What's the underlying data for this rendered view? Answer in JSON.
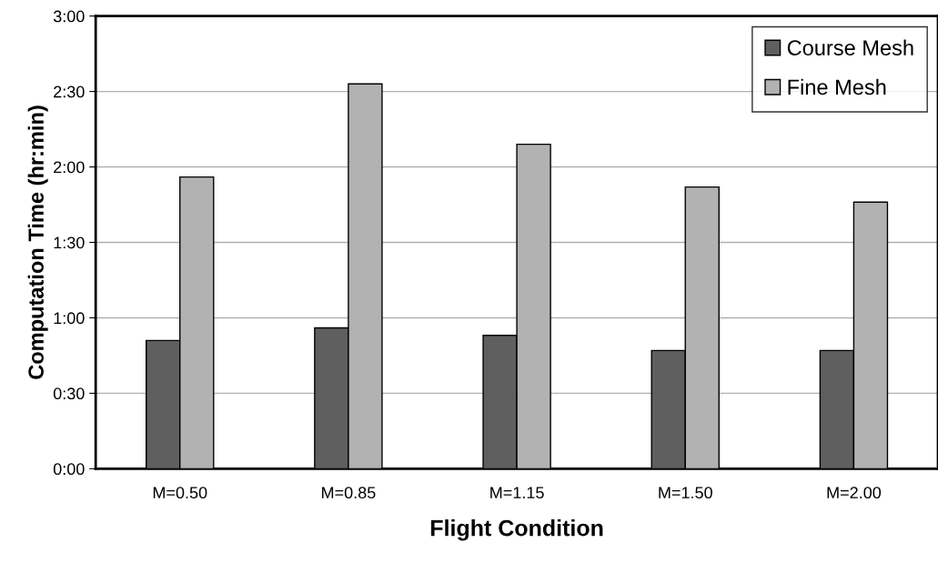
{
  "chart_data": {
    "type": "bar",
    "xlabel": "Flight Condition",
    "ylabel": "Computation Time (hr:min)",
    "categories": [
      "M=0.50",
      "M=0.85",
      "M=1.15",
      "M=1.50",
      "M=2.00"
    ],
    "series": [
      {
        "name": "Course Mesh",
        "color": "#5f5f5f",
        "values": [
          51,
          56,
          53,
          47,
          47
        ]
      },
      {
        "name": "Fine Mesh",
        "color": "#b2b2b2",
        "values": [
          116,
          153,
          129,
          112,
          106
        ]
      }
    ],
    "ylim": [
      0,
      180
    ],
    "yticks": [
      {
        "value": 0,
        "label": "0:00"
      },
      {
        "value": 30,
        "label": "0:30"
      },
      {
        "value": 60,
        "label": "1:00"
      },
      {
        "value": 90,
        "label": "1:30"
      },
      {
        "value": 120,
        "label": "2:00"
      },
      {
        "value": 150,
        "label": "2:30"
      },
      {
        "value": 180,
        "label": "3:00"
      }
    ],
    "grid": "y",
    "legend": "top right"
  }
}
